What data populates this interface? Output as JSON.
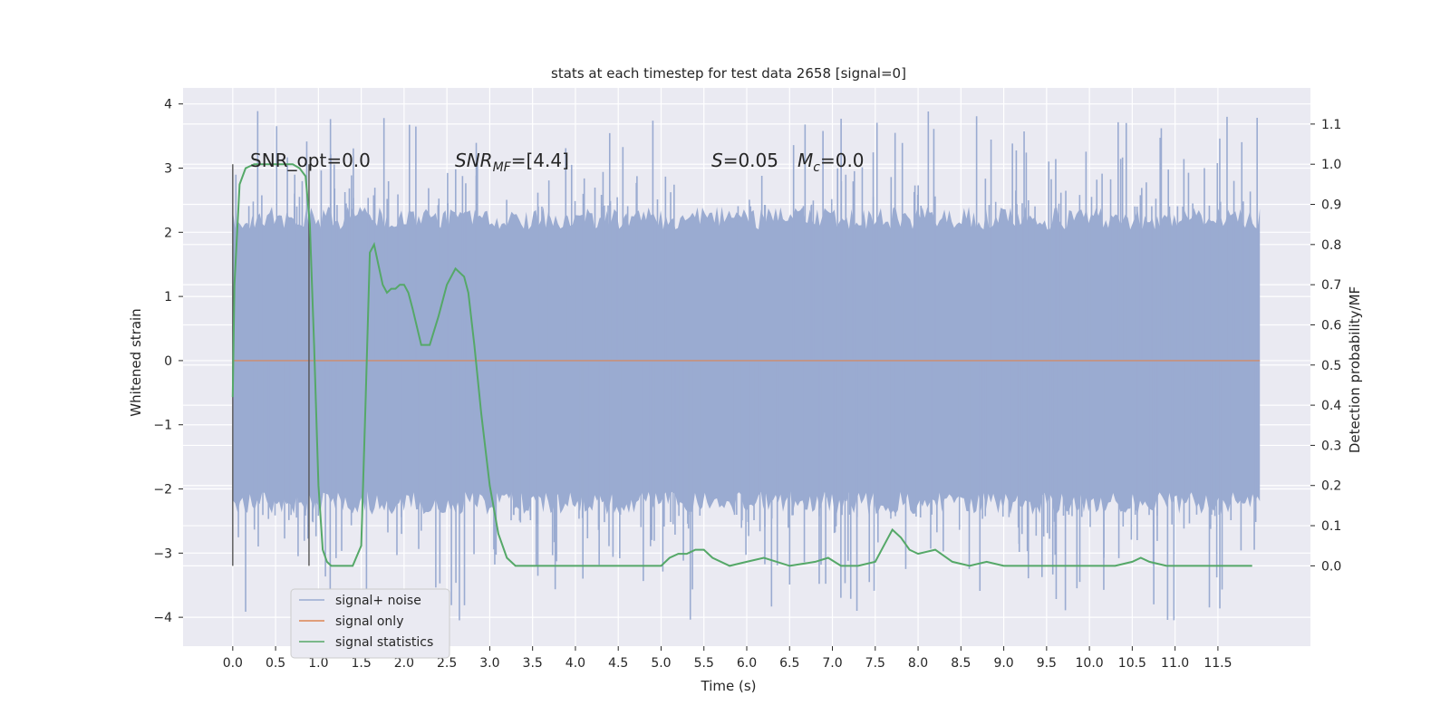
{
  "chart_data": {
    "type": "line",
    "title": "stats at each timestep for test data 2658 [signal=0]",
    "xlabel": "Time (s)",
    "ylabel_left": "Whitened strain",
    "ylabel_right": "Detection probability/MF",
    "xlim": [
      -0.58,
      12.58
    ],
    "ylim_left": [
      -4.45,
      4.25
    ],
    "ylim_right": [
      -0.2,
      1.19
    ],
    "x_ticks": [
      "0.0",
      "0.5",
      "1.0",
      "1.5",
      "2.0",
      "2.5",
      "3.0",
      "3.5",
      "4.0",
      "4.5",
      "5.0",
      "5.5",
      "6.0",
      "6.5",
      "7.0",
      "7.5",
      "8.0",
      "8.5",
      "9.0",
      "9.5",
      "10.0",
      "10.5",
      "11.0",
      "11.5"
    ],
    "y_left_ticks": [
      "4",
      "3",
      "2",
      "1",
      "0",
      "−1",
      "−2",
      "−3",
      "−4"
    ],
    "y_right_ticks": [
      "1.1",
      "1.0",
      "0.9",
      "0.8",
      "0.7",
      "0.6",
      "0.5",
      "0.4",
      "0.3",
      "0.2",
      "0.1",
      "0.0"
    ],
    "grid": true,
    "legend_position": "lower-left",
    "colors": {
      "background": "#eaeaf2",
      "grid": "#ffffff",
      "noise": "#9aabd1",
      "signal": "#dd8452",
      "stats": "#55a868",
      "vline": "#555555"
    },
    "annotations": {
      "snr_opt": "SNR_opt=0.0",
      "snr_mf": "=[4.4]",
      "s_value": "=0.05",
      "mc_value": "=0.0"
    },
    "series": [
      {
        "name": "signal+ noise",
        "x_range": [
          0.0,
          11.99
        ],
        "envelope_p99": 2.4,
        "envelope_max": 3.9,
        "envelope_min": -4.05
      },
      {
        "name": "signal only",
        "x": [
          0.0,
          11.99
        ],
        "y": [
          0.0,
          0.0
        ]
      },
      {
        "name": "signal statistics",
        "x": [
          0.0,
          0.02,
          0.08,
          0.15,
          0.25,
          0.4,
          0.55,
          0.7,
          0.78,
          0.85,
          0.9,
          0.95,
          1.0,
          1.05,
          1.1,
          1.15,
          1.25,
          1.4,
          1.5,
          1.55,
          1.6,
          1.65,
          1.7,
          1.75,
          1.8,
          1.85,
          1.9,
          1.95,
          2.0,
          2.05,
          2.1,
          2.2,
          2.3,
          2.4,
          2.5,
          2.6,
          2.7,
          2.75,
          2.82,
          2.9,
          3.0,
          3.1,
          3.2,
          3.3,
          3.4,
          3.5,
          3.7,
          4.0,
          4.5,
          4.8,
          5.0,
          5.1,
          5.2,
          5.3,
          5.4,
          5.5,
          5.6,
          5.8,
          6.0,
          6.2,
          6.35,
          6.5,
          6.8,
          6.95,
          7.1,
          7.3,
          7.5,
          7.6,
          7.7,
          7.8,
          7.9,
          8.0,
          8.2,
          8.4,
          8.6,
          8.8,
          9.0,
          9.2,
          9.5,
          10.0,
          10.3,
          10.5,
          10.6,
          10.7,
          10.9,
          11.2,
          11.6,
          11.9
        ],
        "y": [
          0.42,
          0.7,
          0.95,
          0.99,
          1.0,
          1.0,
          1.0,
          1.0,
          0.99,
          0.97,
          0.85,
          0.55,
          0.2,
          0.04,
          0.01,
          0.0,
          0.0,
          0.0,
          0.05,
          0.4,
          0.78,
          0.8,
          0.75,
          0.7,
          0.68,
          0.69,
          0.69,
          0.7,
          0.7,
          0.68,
          0.64,
          0.55,
          0.55,
          0.62,
          0.7,
          0.74,
          0.72,
          0.68,
          0.55,
          0.38,
          0.2,
          0.08,
          0.02,
          0.0,
          0.0,
          0.0,
          0.0,
          0.0,
          0.0,
          0.0,
          0.0,
          0.02,
          0.03,
          0.03,
          0.04,
          0.04,
          0.02,
          0.0,
          0.01,
          0.02,
          0.01,
          0.0,
          0.01,
          0.02,
          0.0,
          0.0,
          0.01,
          0.05,
          0.09,
          0.07,
          0.04,
          0.03,
          0.04,
          0.01,
          0.0,
          0.01,
          0.0,
          0.0,
          0.0,
          0.0,
          0.0,
          0.01,
          0.02,
          0.01,
          0.0,
          0.0,
          0.0,
          0.0
        ]
      }
    ],
    "vertical_lines_x": [
      0.0,
      0.89
    ]
  }
}
